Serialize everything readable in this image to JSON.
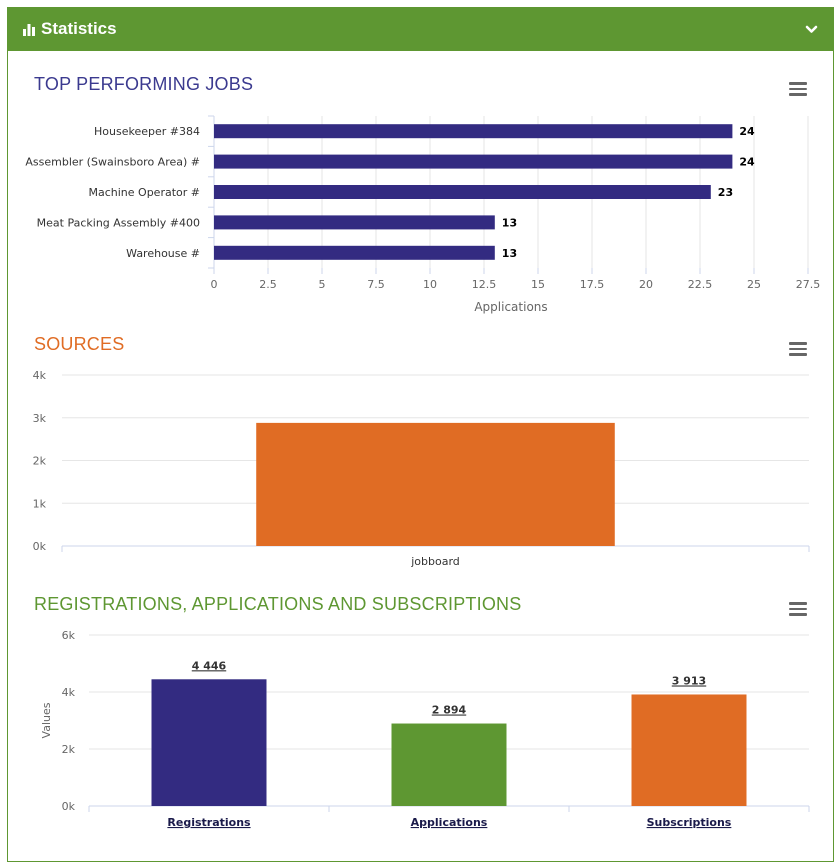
{
  "panel": {
    "title": "Statistics",
    "header_color": "#5e9732",
    "icons": {
      "title_icon": "bar-chart-icon",
      "collapse_icon": "chevron-down-icon",
      "menu_icon": "hamburger-menu-icon"
    }
  },
  "chart_data": [
    {
      "type": "bar",
      "orientation": "horizontal",
      "title": "TOP PERFORMING JOBS",
      "title_color": "#3b3a8f",
      "categories": [
        "Housekeeper #384",
        "Assembler (Swainsboro Area) #",
        "Machine Operator #",
        "Meat Packing Assembly #400",
        "Warehouse #"
      ],
      "values": [
        24,
        24,
        23,
        13,
        13
      ],
      "data_labels": [
        "24",
        "24",
        "23",
        "13",
        "13"
      ],
      "xlabel": "Applications",
      "xlim": [
        0,
        27.5
      ],
      "x_ticks": [
        "0",
        "2.5",
        "5",
        "7.5",
        "10",
        "12.5",
        "15",
        "17.5",
        "20",
        "22.5",
        "25",
        "27.5"
      ],
      "color": "#332b81",
      "grid": true
    },
    {
      "type": "bar",
      "title": "SOURCES",
      "title_color": "#e06c24",
      "categories": [
        "jobboard"
      ],
      "values": [
        2880
      ],
      "ylim": [
        0,
        4000
      ],
      "y_ticks": [
        "0k",
        "1k",
        "2k",
        "3k",
        "4k"
      ],
      "color": "#e06c24",
      "grid": true
    },
    {
      "type": "bar",
      "title": "REGISTRATIONS, APPLICATIONS AND SUBSCRIPTIONS",
      "title_color": "#5e9732",
      "categories": [
        "Registrations",
        "Applications",
        "Subscriptions"
      ],
      "values": [
        4446,
        2894,
        3913
      ],
      "data_labels": [
        "4 446",
        "2 894",
        "3 913"
      ],
      "colors": [
        "#332b81",
        "#5e9732",
        "#e06c24"
      ],
      "ylabel": "Values",
      "ylim": [
        0,
        6000
      ],
      "y_ticks": [
        "0k",
        "2k",
        "4k",
        "6k"
      ],
      "grid": true
    }
  ]
}
